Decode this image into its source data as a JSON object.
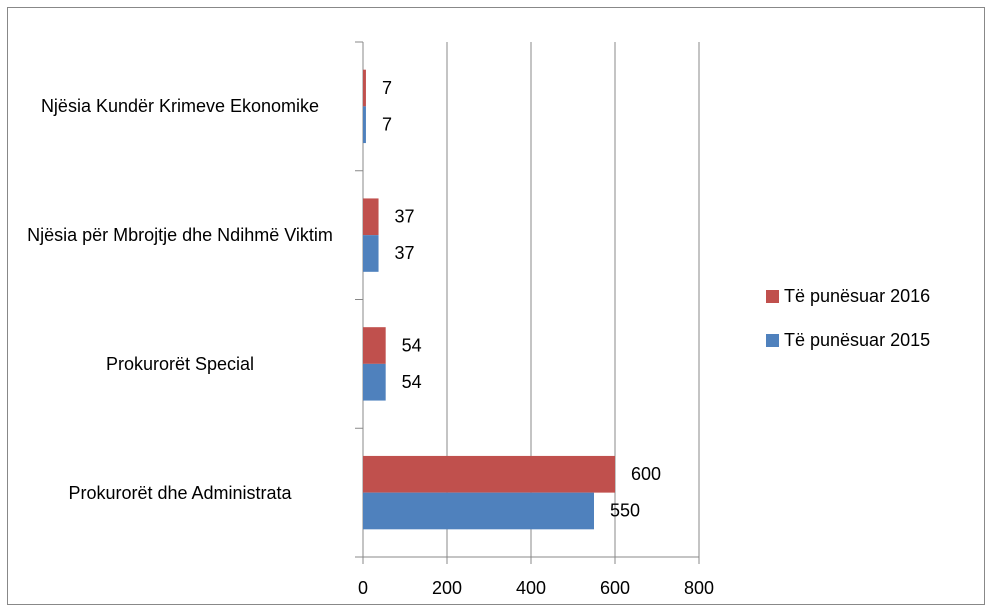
{
  "chart_data": {
    "type": "bar",
    "orientation": "horizontal",
    "categories": [
      "Prokurorët dhe Administrata",
      "Prokurorët Special",
      "Njësia për Mbrojtje dhe Ndihmë Viktim",
      "Njësia Kundër Krimeve Ekonomike"
    ],
    "series": [
      {
        "name": "Të punësuar 2016",
        "color": "#c0504d",
        "values": [
          600,
          54,
          37,
          7
        ]
      },
      {
        "name": "Të punësuar 2015",
        "color": "#4f81bd",
        "values": [
          550,
          54,
          37,
          7
        ]
      }
    ],
    "xlim": [
      0,
      800
    ],
    "xticks": [
      0,
      200,
      400,
      600,
      800
    ],
    "grid": true,
    "legend": "right"
  }
}
